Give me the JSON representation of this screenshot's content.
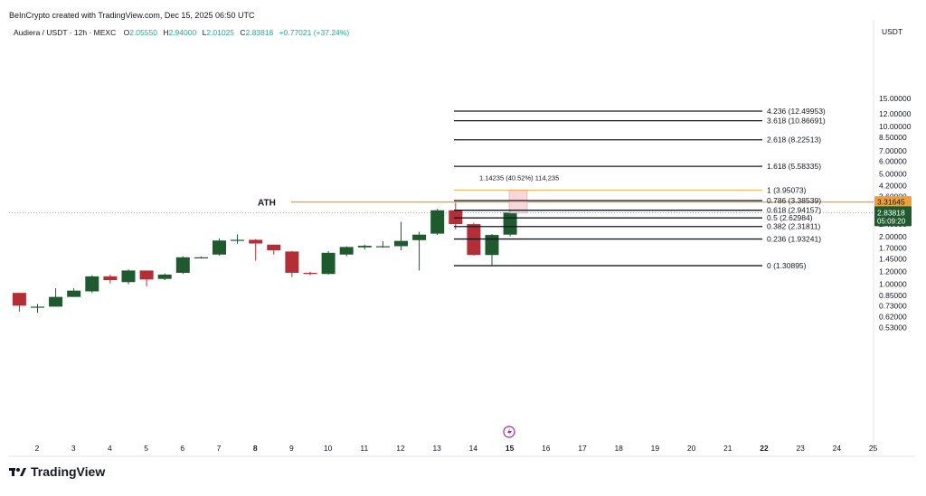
{
  "header": {
    "credit": "BeInCrypto created with TradingView.com, Dec 15, 2025 06:50 UTC"
  },
  "legend": {
    "symbol": "Audiera / USDT · 12h · MEXC",
    "o_key": "O",
    "o_val": "2.05550",
    "h_key": "H",
    "h_val": "2.94000",
    "l_key": "L",
    "l_val": "2.01025",
    "c_key": "C",
    "c_val": "2.83818",
    "change": "+0.77021 (+37.24%)"
  },
  "branding": {
    "name": "TradingView"
  },
  "colors": {
    "up": "#1e5a2e",
    "down": "#b22f37",
    "ath": "#f0a038",
    "fib": "#131722",
    "fib_one": "#f0a038",
    "measure": "#f5c6cb",
    "price_tag": "#1e5a2e",
    "ath_tag": "#f0a038",
    "event": "#9c27b0"
  },
  "chart_data": {
    "type": "candlestick",
    "y_scale": "log",
    "y_unit": "USDT",
    "y_ticks": [
      "15.00000",
      "12.00000",
      "10.00000",
      "8.50000",
      "7.00000",
      "6.00000",
      "5.00000",
      "4.20000",
      "3.60000",
      "3.00000",
      "2.40000",
      "2.00000",
      "1.70000",
      "1.45000",
      "1.20000",
      "1.00000",
      "0.85000",
      "0.73000",
      "0.62000",
      "0.53000"
    ],
    "x_ticks": [
      "2",
      "3",
      "4",
      "5",
      "6",
      "7",
      "8",
      "9",
      "10",
      "11",
      "12",
      "13",
      "14",
      "15",
      "16",
      "17",
      "18",
      "19",
      "20",
      "21",
      "22",
      "23",
      "24",
      "25"
    ],
    "x_bold": [
      "8",
      "15",
      "22"
    ],
    "candles": [
      {
        "o": 0.88,
        "h": 0.88,
        "l": 0.67,
        "c": 0.73
      },
      {
        "o": 0.72,
        "h": 0.75,
        "l": 0.66,
        "c": 0.72
      },
      {
        "o": 0.72,
        "h": 0.94,
        "l": 0.72,
        "c": 0.83
      },
      {
        "o": 0.83,
        "h": 0.94,
        "l": 0.83,
        "c": 0.91
      },
      {
        "o": 0.9,
        "h": 1.14,
        "l": 0.88,
        "c": 1.12
      },
      {
        "o": 1.12,
        "h": 1.15,
        "l": 1.01,
        "c": 1.06
      },
      {
        "o": 1.03,
        "h": 1.24,
        "l": 1.0,
        "c": 1.22
      },
      {
        "o": 1.22,
        "h": 1.22,
        "l": 0.97,
        "c": 1.07
      },
      {
        "o": 1.08,
        "h": 1.17,
        "l": 1.06,
        "c": 1.15
      },
      {
        "o": 1.18,
        "h": 1.5,
        "l": 1.16,
        "c": 1.48
      },
      {
        "o": 1.48,
        "h": 1.5,
        "l": 1.48,
        "c": 1.48
      },
      {
        "o": 1.54,
        "h": 1.95,
        "l": 1.52,
        "c": 1.89
      },
      {
        "o": 1.89,
        "h": 2.07,
        "l": 1.8,
        "c": 1.91
      },
      {
        "o": 1.91,
        "h": 1.93,
        "l": 1.41,
        "c": 1.81
      },
      {
        "o": 1.78,
        "h": 1.78,
        "l": 1.54,
        "c": 1.64
      },
      {
        "o": 1.61,
        "h": 1.62,
        "l": 1.11,
        "c": 1.18
      },
      {
        "o": 1.18,
        "h": 1.2,
        "l": 1.14,
        "c": 1.16
      },
      {
        "o": 1.16,
        "h": 1.62,
        "l": 1.15,
        "c": 1.58
      },
      {
        "o": 1.54,
        "h": 1.74,
        "l": 1.5,
        "c": 1.72
      },
      {
        "o": 1.71,
        "h": 1.78,
        "l": 1.66,
        "c": 1.75
      },
      {
        "o": 1.74,
        "h": 1.87,
        "l": 1.7,
        "c": 1.74
      },
      {
        "o": 1.74,
        "h": 2.48,
        "l": 1.64,
        "c": 1.88
      },
      {
        "o": 1.9,
        "h": 2.15,
        "l": 1.22,
        "c": 2.06
      },
      {
        "o": 2.09,
        "h": 3.0,
        "l": 2.05,
        "c": 2.94
      },
      {
        "o": 2.94,
        "h": 3.29,
        "l": 2.22,
        "c": 2.4
      },
      {
        "o": 2.4,
        "h": 2.45,
        "l": 1.52,
        "c": 1.53
      },
      {
        "o": 1.53,
        "h": 2.08,
        "l": 1.31,
        "c": 2.05
      },
      {
        "o": 2.06,
        "h": 2.94,
        "l": 2.01,
        "c": 2.84
      }
    ],
    "fib_levels": [
      {
        "label": "4.236 (12.49953)",
        "value": 12.49953
      },
      {
        "label": "3.618 (10.86691)",
        "value": 10.86691
      },
      {
        "label": "2.618 (8.22513)",
        "value": 8.22513
      },
      {
        "label": "1.618 (5.58335)",
        "value": 5.58335
      },
      {
        "label": "1 (3.95073)",
        "value": 3.95073
      },
      {
        "label": "0.786 (3.38539)",
        "value": 3.38539
      },
      {
        "label": "0.618 (2.94157)",
        "value": 2.94157
      },
      {
        "label": "0.5 (2.62984)",
        "value": 2.62984
      },
      {
        "label": "0.382 (2.31811)",
        "value": 2.31811
      },
      {
        "label": "0.236 (1.93241)",
        "value": 1.93241
      },
      {
        "label": "0 (1.30895)",
        "value": 1.30895
      }
    ],
    "ath": {
      "label": "ATH",
      "value": 3.31645
    },
    "measure_label": "1.14235 (40.52%) 114,235",
    "last_price": {
      "value": "2.83818",
      "countdown": "05:09:20"
    },
    "ath_tag": "3.31645"
  }
}
